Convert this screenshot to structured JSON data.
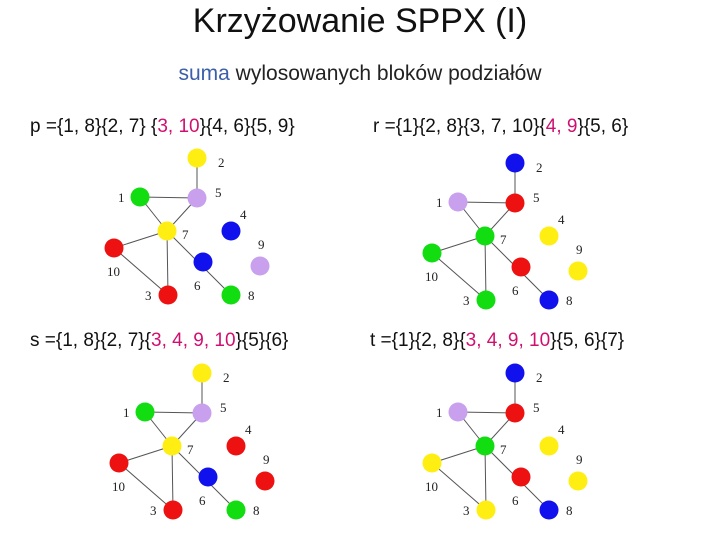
{
  "title": "Krzyżowanie SPPX (I)",
  "subtitle": {
    "accent": "suma",
    "rest": " wylosowanych bloków podziałów"
  },
  "colors": {
    "red": "#ee1111",
    "green": "#11dd11",
    "blue": "#1111ee",
    "yellow": "#ffee11",
    "lilac": "#c8a0ee",
    "highlight": "#d01070",
    "accent": "#3b5fa8"
  },
  "panels": [
    {
      "id": "p",
      "label": {
        "pre": "p ={1, 8}{2, 7} {",
        "hl": "3, 10",
        "post": "}{4, 6}{5, 9}"
      },
      "node_colors": {
        "1": "green",
        "2": "yellow",
        "3": "red",
        "4": "blue",
        "5": "lilac",
        "6": "blue",
        "7": "yellow",
        "8": "green",
        "9": "lilac",
        "10": "red"
      }
    },
    {
      "id": "r",
      "label": {
        "pre": "r ={1}{2, 8}{3, 7, 10}{",
        "hl": "4, 9",
        "post": "}{5, 6}"
      },
      "node_colors": {
        "1": "lilac",
        "2": "blue",
        "3": "green",
        "4": "yellow",
        "5": "red",
        "6": "red",
        "7": "green",
        "8": "blue",
        "9": "yellow",
        "10": "green"
      }
    },
    {
      "id": "s",
      "label": {
        "pre": "s ={1, 8}{2, 7}{",
        "hl": "3, 4, 9, 10",
        "post": "}{5}{6}"
      },
      "node_colors": {
        "1": "green",
        "2": "yellow",
        "3": "red",
        "4": "red",
        "5": "lilac",
        "6": "blue",
        "7": "yellow",
        "8": "green",
        "9": "red",
        "10": "red"
      }
    },
    {
      "id": "t",
      "label": {
        "pre": "t ={1}{2, 8}{",
        "hl": "3, 4, 9, 10",
        "post": "}{5, 6}{7}"
      },
      "node_colors": {
        "1": "lilac",
        "2": "blue",
        "3": "yellow",
        "4": "yellow",
        "5": "red",
        "6": "red",
        "7": "green",
        "8": "blue",
        "9": "yellow",
        "10": "yellow"
      }
    }
  ],
  "node_labels": [
    "1",
    "2",
    "3",
    "4",
    "5",
    "6",
    "7",
    "8",
    "9",
    "10"
  ]
}
